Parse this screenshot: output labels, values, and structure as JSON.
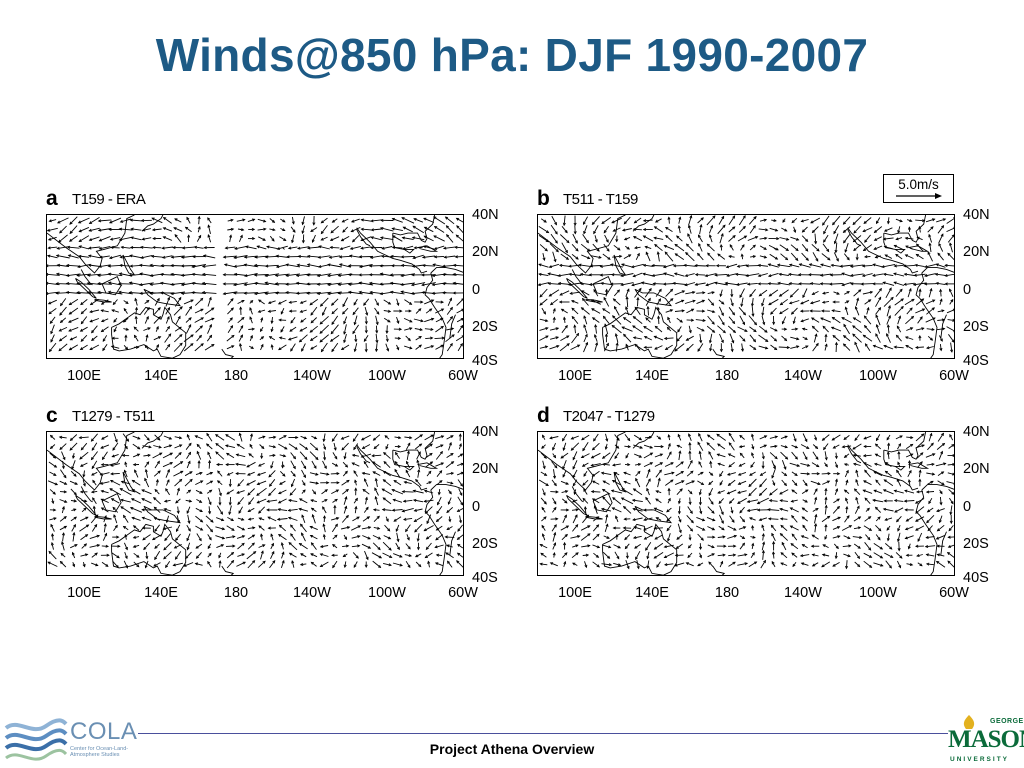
{
  "slide": {
    "title": "Winds@850 hPa: DJF 1990-2007",
    "footer": "Project Athena Overview"
  },
  "map": {
    "lat_labels": [
      "40N",
      "20N",
      "0",
      "20S",
      "40S"
    ],
    "lon_labels": [
      "100E",
      "140E",
      "180",
      "140W",
      "100W",
      "60W"
    ],
    "reference_vector": "5.0m/s",
    "panels": [
      {
        "letter": "a",
        "label": "T159 - ERA"
      },
      {
        "letter": "b",
        "label": "T511 - T159"
      },
      {
        "letter": "c",
        "label": "T1279 - T511"
      },
      {
        "letter": "d",
        "label": "T2047 - T1279"
      }
    ]
  },
  "logos": {
    "cola": {
      "name": "COLA",
      "subtitle": "Center for Ocean-Land-Atmosphere Studies"
    },
    "gmu": {
      "top": "GEORGE",
      "name": "MASON",
      "bottom": "UNIVERSITY"
    }
  },
  "colors": {
    "title": "#1d5a85",
    "footer_line": "#4a4f9c",
    "gmu_green": "#0b6b3a",
    "cola_blue": "#6a8fb3"
  }
}
